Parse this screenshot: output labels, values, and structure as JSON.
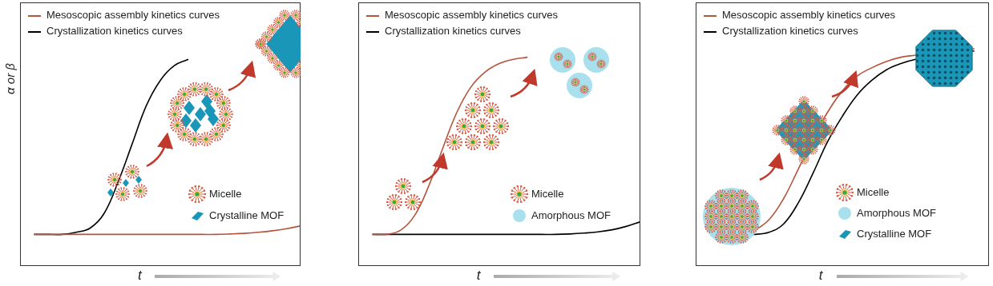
{
  "chart_data": [
    {
      "type": "line",
      "x_label": "t",
      "y_label": "α or β",
      "legend": "top left",
      "tick_labels": false,
      "grid": false,
      "xlim": [
        0,
        10
      ],
      "ylim": [
        0,
        1.25
      ],
      "xticks": [],
      "yticks": [],
      "x": [
        0.5,
        1,
        1.5,
        2,
        2.5,
        3,
        3.5,
        4,
        4.5,
        5,
        5.5,
        6,
        6.5,
        7,
        7.5,
        8,
        8.5,
        9,
        9.5,
        10
      ],
      "series": [
        {
          "name": "Mesoscopic assembly kinetics curves",
          "color": "#b5533c",
          "values": [
            0.15,
            0.15,
            0.15,
            0.15,
            0.15,
            0.15,
            0.15,
            0.15,
            0.15,
            0.15,
            0.15,
            0.15,
            0.15,
            0.15,
            0.152,
            0.155,
            0.16,
            0.167,
            0.177,
            0.19
          ]
        },
        {
          "name": "Crystallization kinetics curves",
          "color": "#000000",
          "values": [
            0.15,
            0.15,
            0.15,
            0.16,
            0.18,
            0.25,
            0.4,
            0.58,
            0.76,
            0.88,
            0.95,
            0.98,
            null,
            null,
            null,
            null,
            null,
            null,
            null,
            null
          ]
        }
      ],
      "annotations": [
        "Micelle",
        "Crystalline MOF"
      ]
    },
    {
      "type": "line",
      "x_label": "t",
      "legend": "top left",
      "tick_labels": false,
      "grid": false,
      "xlim": [
        0,
        10
      ],
      "ylim": [
        0,
        1.25
      ],
      "xticks": [],
      "yticks": [],
      "x": [
        0.5,
        1,
        1.5,
        2,
        2.5,
        3,
        3.5,
        4,
        4.5,
        5,
        5.5,
        6,
        6.5,
        7,
        7.5,
        8,
        8.5,
        9,
        9.5,
        10
      ],
      "series": [
        {
          "name": "Mesoscopic assembly kinetics curves",
          "color": "#b5533c",
          "values": [
            0.15,
            0.15,
            0.17,
            0.24,
            0.38,
            0.56,
            0.73,
            0.85,
            0.92,
            0.96,
            0.98,
            0.99,
            null,
            null,
            null,
            null,
            null,
            null,
            null,
            null
          ]
        },
        {
          "name": "Crystallization kinetics curves",
          "color": "#000000",
          "values": [
            0.15,
            0.15,
            0.15,
            0.15,
            0.15,
            0.15,
            0.15,
            0.15,
            0.15,
            0.15,
            0.15,
            0.15,
            0.15,
            0.15,
            0.152,
            0.156,
            0.162,
            0.172,
            0.188,
            0.21
          ]
        }
      ],
      "annotations": [
        "Micelle",
        "Amorphous MOF"
      ]
    },
    {
      "type": "line",
      "x_label": "t",
      "legend": "top left",
      "tick_labels": false,
      "grid": false,
      "xlim": [
        0,
        10
      ],
      "ylim": [
        0,
        1.25
      ],
      "xticks": [],
      "yticks": [],
      "x": [
        0.5,
        1,
        1.5,
        2,
        2.5,
        3,
        3.5,
        4,
        4.5,
        5,
        5.5,
        6,
        6.5,
        7,
        7.5,
        8,
        8.5,
        9,
        9.5,
        10
      ],
      "series": [
        {
          "name": "Mesoscopic assembly kinetics curves",
          "color": "#b5533c",
          "values": [
            0.15,
            0.15,
            0.15,
            0.17,
            0.22,
            0.32,
            0.46,
            0.6,
            0.73,
            0.83,
            0.9,
            0.94,
            0.97,
            0.99,
            1.0,
            1.01,
            1.02,
            1.025,
            1.03,
            null
          ]
        },
        {
          "name": "Crystallization kinetics curves",
          "color": "#000000",
          "values": [
            0.15,
            0.15,
            0.15,
            0.15,
            0.16,
            0.2,
            0.3,
            0.44,
            0.59,
            0.71,
            0.81,
            0.88,
            0.93,
            0.96,
            0.98,
            0.99,
            1.0,
            1.01,
            1.02,
            null
          ]
        }
      ],
      "annotations": [
        "Micelle",
        "Amorphous MOF",
        "Crystalline MOF"
      ]
    }
  ]
}
